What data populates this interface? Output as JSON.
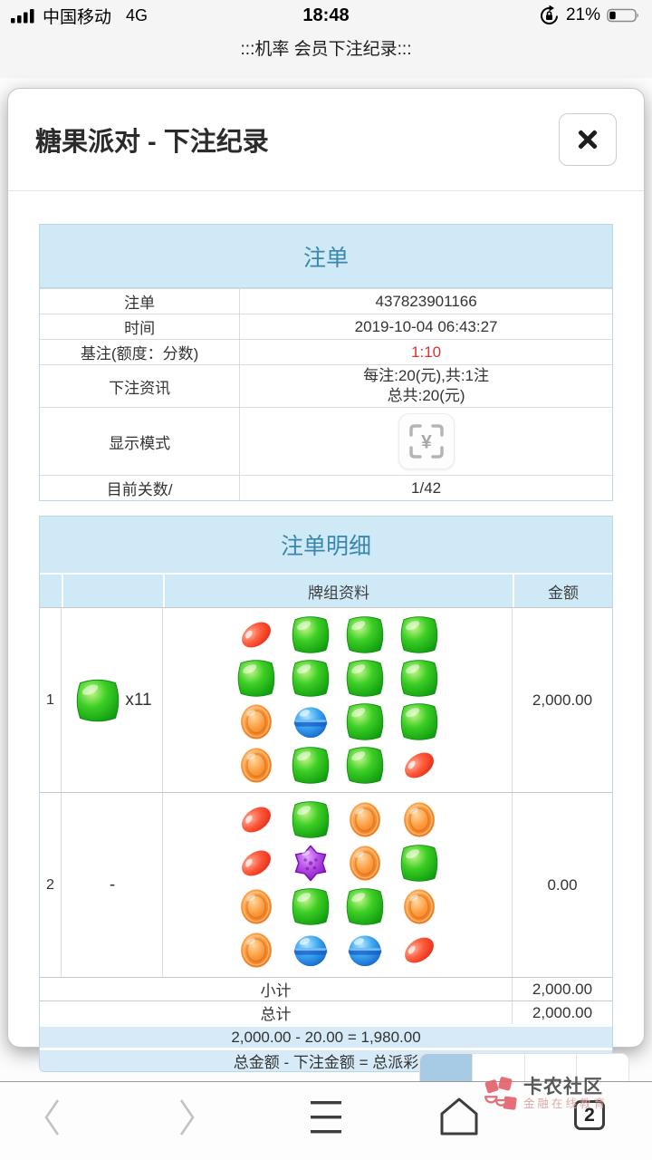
{
  "status_bar": {
    "carrier": "中国移动",
    "network": "4G",
    "time": "18:48",
    "battery_percent": "21%"
  },
  "page_header": {
    "title": ":::机率 会员下注纪录:::"
  },
  "modal": {
    "title": "糖果派对 - 下注纪录",
    "bet_summary": {
      "title": "注单",
      "display_mode_symbol": "¥",
      "rows": [
        {
          "label": "注单",
          "value": "437823901166"
        },
        {
          "label": "时间",
          "value": "2019-10-04 06:43:27"
        },
        {
          "label": "基注(额度：分数)",
          "value": "1:10"
        },
        {
          "label": "下注资讯",
          "value_line1": "每注:20(元),共:1注",
          "value_line2": "总共:20(元)"
        },
        {
          "label": "显示模式"
        },
        {
          "label": "目前关数/",
          "value": "1/42"
        }
      ]
    },
    "bet_details": {
      "title": "注单明细",
      "columns": {
        "group": "牌组资料",
        "amount": "金额"
      },
      "rows": [
        {
          "index": "1",
          "multiplier_candy": "green",
          "multiplier_label": "x11",
          "amount": "2,000.00",
          "grid": [
            [
              "red",
              "green",
              "green",
              "green"
            ],
            [
              "green",
              "green",
              "green",
              "green"
            ],
            [
              "orange",
              "blue",
              "green",
              "green"
            ],
            [
              "orange",
              "green",
              "green",
              "red"
            ]
          ]
        },
        {
          "index": "2",
          "multiplier_candy": "",
          "multiplier_label": "-",
          "amount": "0.00",
          "grid": [
            [
              "red",
              "green",
              "orange",
              "orange"
            ],
            [
              "red",
              "purple",
              "orange",
              "green"
            ],
            [
              "orange",
              "green",
              "green",
              "orange"
            ],
            [
              "orange",
              "blue",
              "blue",
              "red"
            ]
          ]
        }
      ],
      "subtotal_label": "小计",
      "subtotal_value": "2,000.00",
      "total_label": "总计",
      "total_value": "2,000.00",
      "formula_calc": "2,000.00 - 20.00 = 1,980.00",
      "formula_note": "总金额 - 下注金额 = 总派彩"
    }
  },
  "browser": {
    "tab_count": "2"
  },
  "watermark": {
    "title": "卡农社区",
    "subtitle": "金融在线教育"
  },
  "icons": {
    "signal": "signal-bars-icon",
    "rotation_lock": "rotation-lock-icon",
    "battery": "battery-icon",
    "close": "close-x-icon",
    "display_mode": "yuan-scan-frame-icon",
    "back": "chevron-left-icon",
    "forward": "chevron-right-icon",
    "menu": "hamburger-menu-icon",
    "home": "home-icon",
    "tabs": "tab-counter-box"
  },
  "colors": {
    "table_header_bg": "#cfe9f7",
    "table_title_text": "#3a87ad",
    "highlight_red": "#e03131",
    "active_page_blue": "#a7cbe4"
  }
}
